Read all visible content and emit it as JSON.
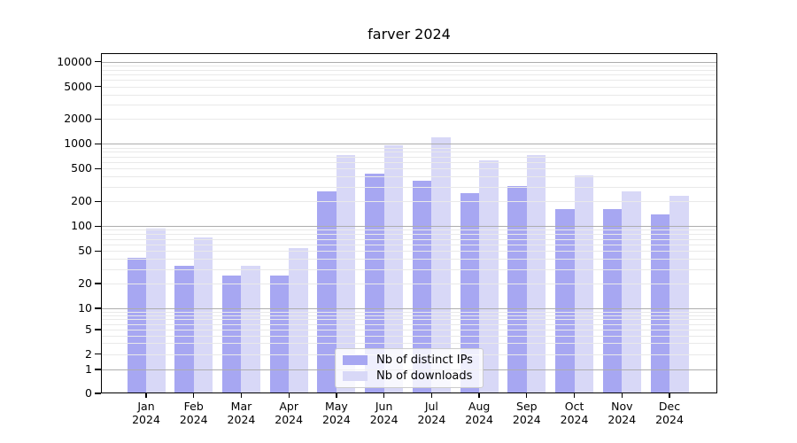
{
  "title": "farver 2024",
  "chart_data": {
    "type": "bar",
    "title": "farver 2024",
    "categories": [
      "Jan 2024",
      "Feb 2024",
      "Mar 2024",
      "Apr 2024",
      "May 2024",
      "Jun 2024",
      "Jul 2024",
      "Aug 2024",
      "Sep 2024",
      "Oct 2024",
      "Nov 2024",
      "Dec 2024"
    ],
    "month_labels": [
      "Jan",
      "Feb",
      "Mar",
      "Apr",
      "May",
      "Jun",
      "Jul",
      "Aug",
      "Sep",
      "Oct",
      "Nov",
      "Dec"
    ],
    "year_label": "2024",
    "series": [
      {
        "name": "Nb of distinct IPs",
        "color": "#a7a7f2",
        "values": [
          41,
          33,
          25,
          25,
          265,
          430,
          360,
          250,
          310,
          160,
          163,
          140
        ]
      },
      {
        "name": "Nb of downloads",
        "color": "#d8d8f7",
        "values": [
          94,
          73,
          33,
          54,
          730,
          965,
          1190,
          635,
          735,
          415,
          262,
          233
        ]
      }
    ],
    "y_ticks": [
      0,
      1,
      2,
      5,
      10,
      20,
      50,
      100,
      200,
      500,
      1000,
      2000,
      5000,
      10000
    ],
    "yscale": "pseudo-log",
    "ylim": [
      0,
      13000
    ],
    "xlabel": "",
    "ylabel": "",
    "grid": true,
    "legend_position": "lower center"
  },
  "colors": {
    "bar_ips": "#a7a7f2",
    "bar_downloads": "#d8d8f7",
    "grid_major": "#adadad",
    "grid_minor": "#e9e9e9",
    "axis": "#000000",
    "background": "#ffffff"
  }
}
